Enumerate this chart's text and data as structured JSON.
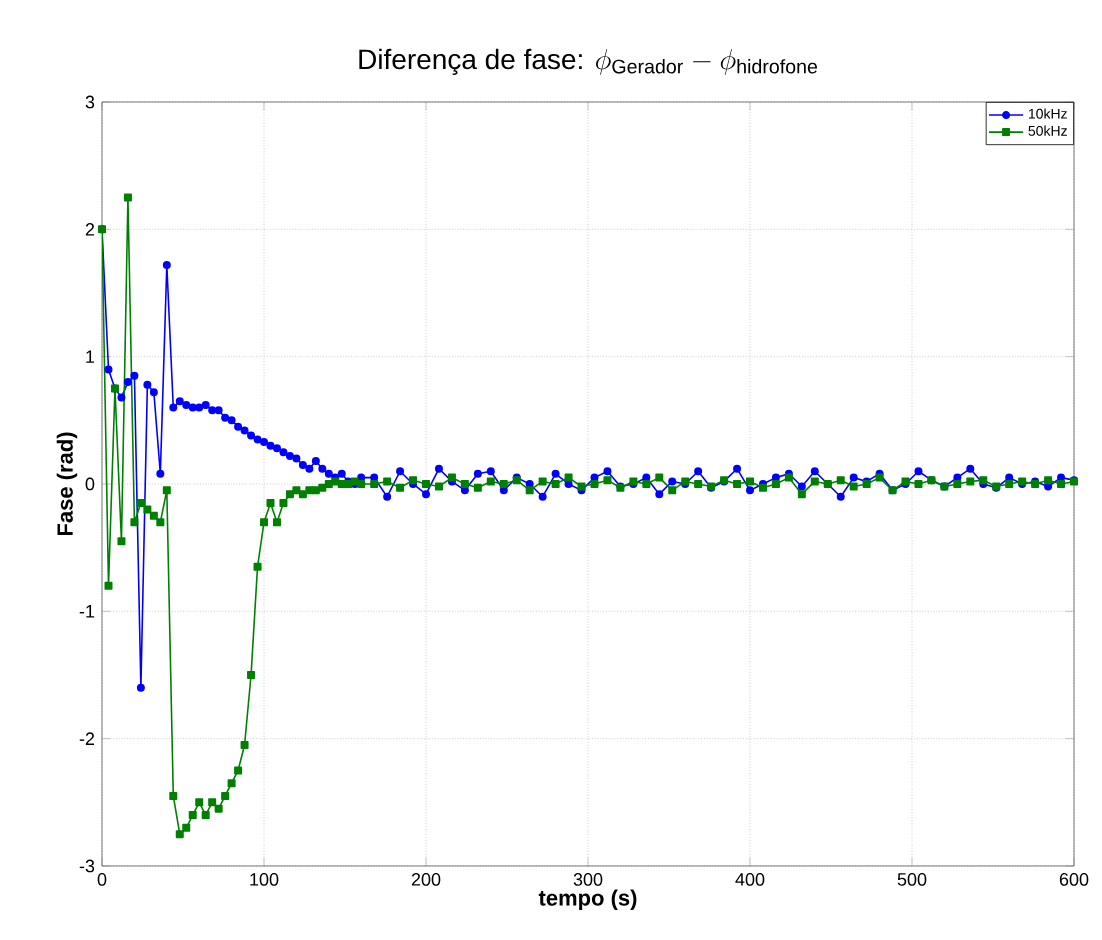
{
  "chart_data": {
    "type": "line",
    "title": "\\text{Diferença de fase: }\\phi_{\\text{Gerador}} - \\phi_{\\text{hidrofone}}",
    "xlabel": "tempo (s)",
    "ylabel": "Fase (rad)",
    "x": [
      0,
      4,
      8,
      12,
      16,
      20,
      24,
      28,
      32,
      36,
      40,
      44,
      48,
      52,
      56,
      60,
      64,
      68,
      72,
      76,
      80,
      84,
      88,
      92,
      96,
      100,
      104,
      108,
      112,
      116,
      120,
      124,
      128,
      132,
      136,
      140,
      144,
      148,
      152,
      156,
      160,
      168,
      176,
      184,
      192,
      200,
      208,
      216,
      224,
      232,
      240,
      248,
      256,
      264,
      272,
      280,
      288,
      296,
      304,
      312,
      320,
      328,
      336,
      344,
      352,
      360,
      368,
      376,
      384,
      392,
      400,
      408,
      416,
      424,
      432,
      440,
      448,
      456,
      464,
      472,
      480,
      488,
      496,
      504,
      512,
      520,
      528,
      536,
      544,
      552,
      560,
      568,
      576,
      584,
      592,
      600
    ],
    "series": [
      {
        "name": "10kHz",
        "color": "#0000ff",
        "marker": "circle",
        "values": [
          2.0,
          0.9,
          0.75,
          0.68,
          0.8,
          0.85,
          -1.6,
          0.78,
          0.72,
          0.08,
          1.72,
          0.6,
          0.65,
          0.62,
          0.6,
          0.6,
          0.62,
          0.58,
          0.58,
          0.52,
          0.5,
          0.45,
          0.42,
          0.38,
          0.35,
          0.33,
          0.3,
          0.28,
          0.25,
          0.22,
          0.2,
          0.15,
          0.12,
          0.18,
          0.12,
          0.08,
          0.05,
          0.08,
          0.02,
          0.0,
          0.05,
          0.05,
          -0.1,
          0.1,
          0.0,
          -0.08,
          0.12,
          0.02,
          -0.05,
          0.08,
          0.1,
          -0.05,
          0.05,
          0.0,
          -0.1,
          0.08,
          0.0,
          -0.05,
          0.05,
          0.1,
          -0.02,
          0.0,
          0.05,
          -0.08,
          0.02,
          0.0,
          0.1,
          -0.03,
          0.02,
          0.12,
          -0.05,
          0.0,
          0.05,
          0.08,
          -0.02,
          0.1,
          0.0,
          -0.1,
          0.05,
          0.02,
          0.08,
          -0.05,
          0.0,
          0.1,
          0.03,
          -0.02,
          0.05,
          0.12,
          0.0,
          -0.03,
          0.05,
          0.0,
          0.02,
          -0.02,
          0.05,
          0.03
        ]
      },
      {
        "name": "50kHz",
        "color": "#008000",
        "marker": "square",
        "values": [
          2.0,
          -0.8,
          0.75,
          -0.45,
          2.25,
          -0.3,
          -0.15,
          -0.2,
          -0.25,
          -0.3,
          -0.05,
          -2.45,
          -2.75,
          -2.7,
          -2.6,
          -2.5,
          -2.6,
          -2.5,
          -2.55,
          -2.45,
          -2.35,
          -2.25,
          -2.05,
          -1.5,
          -0.65,
          -0.3,
          -0.15,
          -0.3,
          -0.15,
          -0.08,
          -0.05,
          -0.08,
          -0.05,
          -0.05,
          -0.03,
          0.0,
          0.02,
          0.0,
          0.0,
          0.02,
          0.0,
          0.0,
          0.02,
          -0.03,
          0.03,
          0.0,
          -0.02,
          0.05,
          0.0,
          -0.03,
          0.02,
          0.0,
          0.03,
          -0.05,
          0.02,
          0.0,
          0.05,
          -0.02,
          0.0,
          0.03,
          -0.03,
          0.02,
          0.0,
          0.05,
          -0.05,
          0.02,
          0.0,
          -0.02,
          0.03,
          0.0,
          0.02,
          -0.03,
          0.0,
          0.05,
          -0.08,
          0.02,
          0.0,
          0.03,
          -0.02,
          0.0,
          0.05,
          -0.05,
          0.02,
          0.0,
          0.03,
          -0.02,
          0.0,
          0.02,
          0.03,
          -0.02,
          0.0,
          0.02,
          0.0,
          0.03,
          0.0,
          0.02
        ]
      }
    ],
    "xlim": [
      0,
      600
    ],
    "xticks": [
      0,
      100,
      200,
      300,
      400,
      500,
      600
    ],
    "ylim": [
      -3,
      3
    ],
    "yticks": [
      -3,
      -2,
      -1,
      0,
      1,
      2,
      3
    ],
    "grid": true,
    "legend": "top right",
    "line_style": "solid"
  }
}
